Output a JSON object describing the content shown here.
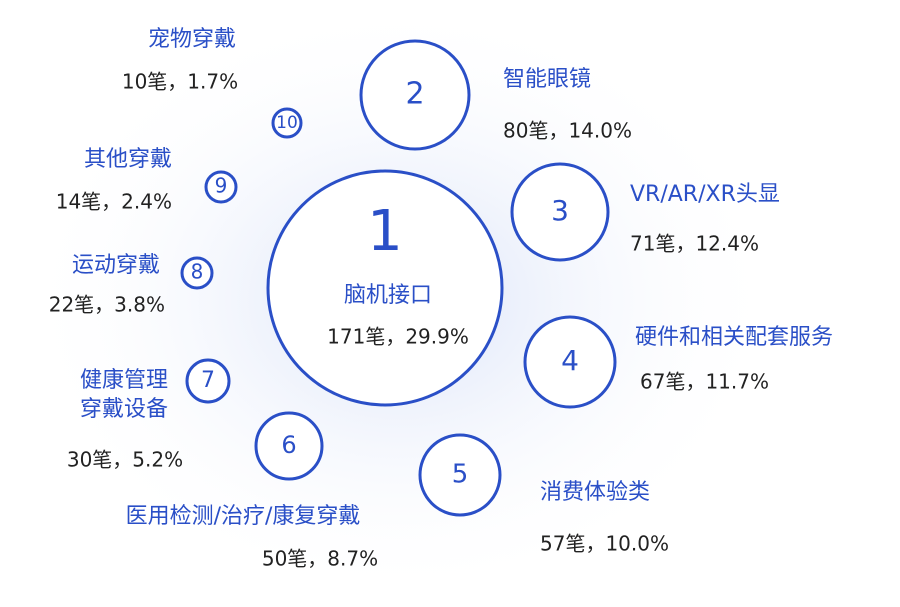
{
  "nodes": [
    {
      "rank": "1",
      "label": [
        "脑机接口"
      ],
      "detail": "171笔，29.9%"
    },
    {
      "rank": "2",
      "label": [
        "智能眼镜"
      ],
      "detail": "80笔，14.0%"
    },
    {
      "rank": "3",
      "label": [
        "VR/AR/XR头显"
      ],
      "detail": "71笔，12.4%"
    },
    {
      "rank": "4",
      "label": [
        "硬件和相关配套服务"
      ],
      "detail": "67笔，11.7%"
    },
    {
      "rank": "5",
      "label": [
        "消费体验类"
      ],
      "detail": "57笔，10.0%"
    },
    {
      "rank": "6",
      "label": [
        "医用检测/治疗/康复穿戴"
      ],
      "detail": "50笔，8.7%"
    },
    {
      "rank": "7",
      "label": [
        "健康管理",
        "穿戴设备"
      ],
      "detail": "30笔，5.2%"
    },
    {
      "rank": "8",
      "label": [
        "运动穿戴"
      ],
      "detail": "22笔，3.8%"
    },
    {
      "rank": "9",
      "label": [
        "其他穿戴"
      ],
      "detail": "14笔，2.4%"
    },
    {
      "rank": "10",
      "label": [
        "宠物穿戴"
      ],
      "detail": "10笔，1.7%"
    }
  ]
}
